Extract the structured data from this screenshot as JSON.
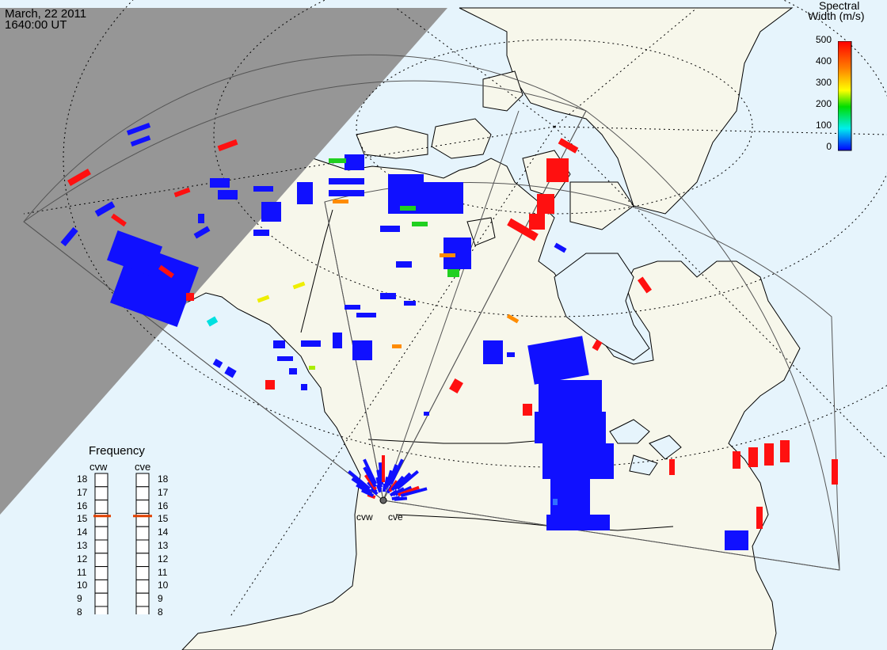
{
  "header": {
    "date": "March, 22 2011",
    "time": "1640:00 UT"
  },
  "colorbar": {
    "title_line1": "Spectral",
    "title_line2": "Width (m/s)",
    "ticks": [
      "500",
      "400",
      "300",
      "200",
      "100",
      "0"
    ],
    "colors": [
      "#ff0000",
      "#ff8000",
      "#ffff00",
      "#00dd00",
      "#00eeee",
      "#0000ff"
    ]
  },
  "frequency": {
    "title": "Frequency",
    "radars": [
      {
        "label": "cvw",
        "freq_mhz": 15.3
      },
      {
        "label": "cve",
        "freq_mhz": 15.3
      }
    ],
    "scale": [
      "18",
      "17",
      "16",
      "15",
      "14",
      "13",
      "12",
      "11",
      "10",
      "9",
      "8"
    ]
  },
  "radar_labels": [
    "cvw",
    "cve"
  ],
  "colors": {
    "ocean": "#e6f4fc",
    "land": "#f7f7eb",
    "night": "#969696",
    "marker": "#e04000"
  }
}
